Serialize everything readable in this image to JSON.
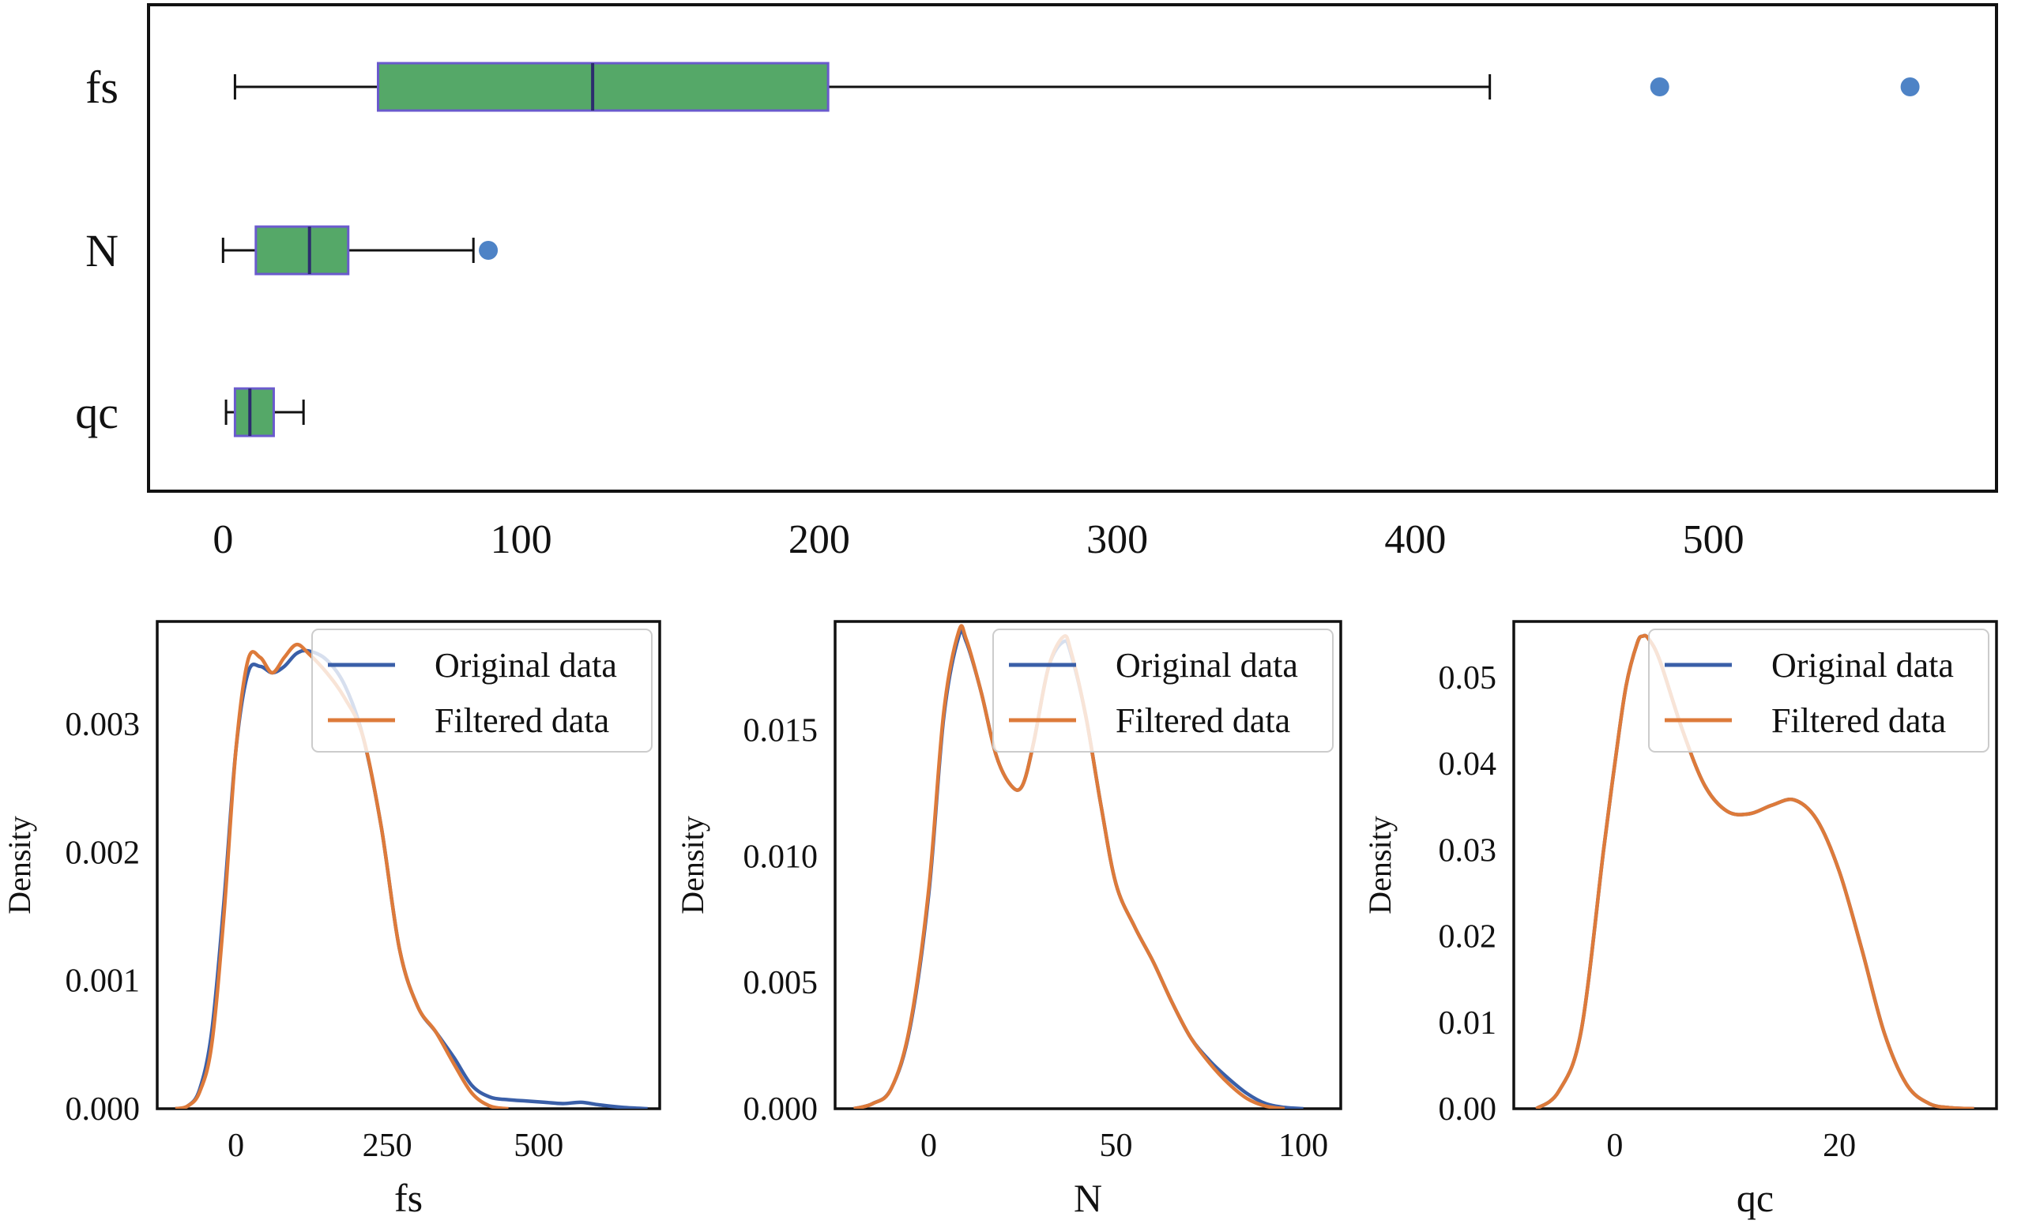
{
  "chart_data": [
    {
      "type": "boxplot",
      "orientation": "horizontal",
      "title": "",
      "categories": [
        "fs",
        "N",
        "qc"
      ],
      "xlim": [
        -25,
        595
      ],
      "xticks": [
        0,
        100,
        200,
        300,
        400,
        500
      ],
      "colors": {
        "box_fill": "#55a868",
        "box_edge": "#6a5acd",
        "median": "#2c2c6e",
        "whisker": "#111111",
        "outlier": "#4e83c6"
      },
      "boxes": [
        {
          "label": "fs",
          "whislo": 4,
          "q1": 52,
          "median": 124,
          "q3": 203,
          "whishi": 425,
          "fliers": [
            482,
            566
          ]
        },
        {
          "label": "N",
          "whislo": 0,
          "q1": 11,
          "median": 29,
          "q3": 42,
          "whishi": 84,
          "fliers": [
            89
          ]
        },
        {
          "label": "qc",
          "whislo": 1,
          "q1": 4,
          "median": 9,
          "q3": 17,
          "whishi": 27,
          "fliers": []
        }
      ]
    },
    {
      "type": "line",
      "title": "",
      "xlabel": "fs",
      "ylabel": "Density",
      "xlim": [
        -130,
        700
      ],
      "ylim": [
        0,
        0.0038
      ],
      "xticks": [
        0,
        250,
        500
      ],
      "yticks": [
        0.0,
        0.001,
        0.002,
        0.003
      ],
      "ytick_labels": [
        "0.000",
        "0.001",
        "0.002",
        "0.003"
      ],
      "legend": {
        "loc": "upper right",
        "entries": [
          "Original data",
          "Filtered data"
        ]
      },
      "series": [
        {
          "name": "Original data",
          "color": "#3a5fa8",
          "x": [
            -100,
            -80,
            -60,
            -40,
            -20,
            0,
            20,
            40,
            60,
            80,
            100,
            120,
            150,
            180,
            210,
            240,
            270,
            300,
            330,
            360,
            390,
            420,
            450,
            480,
            510,
            540,
            570,
            600,
            640,
            680
          ],
          "y": [
            0.0,
            2e-05,
            0.00015,
            0.0006,
            0.0016,
            0.0028,
            0.0034,
            0.00345,
            0.0034,
            0.00345,
            0.00355,
            0.00357,
            0.0035,
            0.0033,
            0.0029,
            0.0022,
            0.00125,
            0.0008,
            0.0006,
            0.0004,
            0.00018,
            9e-05,
            7e-05,
            6e-05,
            5e-05,
            4e-05,
            5e-05,
            3e-05,
            1e-05,
            0.0
          ]
        },
        {
          "name": "Filtered data",
          "color": "#dd7a3a",
          "x": [
            -100,
            -80,
            -60,
            -40,
            -20,
            0,
            20,
            40,
            60,
            80,
            100,
            120,
            150,
            180,
            210,
            240,
            270,
            300,
            330,
            360,
            390,
            420,
            450
          ],
          "y": [
            0.0,
            2e-05,
            0.00013,
            0.0005,
            0.0015,
            0.0028,
            0.0035,
            0.00352,
            0.0034,
            0.00352,
            0.00362,
            0.00355,
            0.0034,
            0.0032,
            0.0029,
            0.0022,
            0.00125,
            0.0008,
            0.0006,
            0.00035,
            0.00012,
            2e-05,
            0.0
          ]
        }
      ]
    },
    {
      "type": "line",
      "title": "",
      "xlabel": "N",
      "ylabel": "Density",
      "xlim": [
        -25,
        110
      ],
      "ylim": [
        0,
        0.0193
      ],
      "xticks": [
        0,
        50,
        100
      ],
      "yticks": [
        0.0,
        0.005,
        0.01,
        0.015
      ],
      "ytick_labels": [
        "0.000",
        "0.005",
        "0.010",
        "0.015"
      ],
      "legend": {
        "loc": "upper right",
        "entries": [
          "Original data",
          "Filtered data"
        ]
      },
      "series": [
        {
          "name": "Original data",
          "color": "#3a5fa8",
          "x": [
            -20,
            -15,
            -10,
            -5,
            0,
            4,
            8,
            10,
            14,
            18,
            22,
            25,
            28,
            32,
            36,
            38,
            42,
            46,
            50,
            55,
            60,
            65,
            70,
            75,
            80,
            85,
            90,
            95,
            100
          ],
          "y": [
            0.0,
            0.0002,
            0.0008,
            0.0032,
            0.0085,
            0.0155,
            0.0187,
            0.0185,
            0.0165,
            0.014,
            0.0128,
            0.0128,
            0.0145,
            0.0175,
            0.0185,
            0.018,
            0.0155,
            0.012,
            0.0089,
            0.0072,
            0.0058,
            0.0042,
            0.0028,
            0.0019,
            0.0012,
            0.0006,
            0.0002,
            5e-05,
            0.0
          ]
        },
        {
          "name": "Filtered data",
          "color": "#dd7a3a",
          "x": [
            -20,
            -15,
            -10,
            -5,
            0,
            4,
            8,
            10,
            14,
            18,
            22,
            25,
            28,
            32,
            36,
            38,
            42,
            46,
            50,
            55,
            60,
            65,
            70,
            75,
            80,
            85,
            90,
            95
          ],
          "y": [
            0.0,
            0.0002,
            0.0008,
            0.0033,
            0.0087,
            0.0157,
            0.0189,
            0.0186,
            0.0165,
            0.014,
            0.0128,
            0.0128,
            0.0145,
            0.0175,
            0.0187,
            0.0181,
            0.0155,
            0.012,
            0.0089,
            0.0072,
            0.0058,
            0.0042,
            0.0028,
            0.0018,
            0.001,
            0.0004,
            0.0001,
            0.0
          ]
        }
      ]
    },
    {
      "type": "line",
      "title": "",
      "xlabel": "qc",
      "ylabel": "Density",
      "xlim": [
        -9,
        34
      ],
      "ylim": [
        0,
        0.0565
      ],
      "xticks": [
        0,
        20
      ],
      "yticks": [
        0.0,
        0.01,
        0.02,
        0.03,
        0.04,
        0.05
      ],
      "ytick_labels": [
        "0.00",
        "0.01",
        "0.02",
        "0.03",
        "0.04",
        "0.05"
      ],
      "legend": {
        "loc": "upper right",
        "entries": [
          "Original data",
          "Filtered data"
        ]
      },
      "series": [
        {
          "name": "Original data",
          "color": "#3a5fa8",
          "x": [
            -7,
            -5,
            -3,
            -1,
            0,
            1,
            2,
            2.5,
            3,
            4,
            6,
            8,
            10,
            12,
            14,
            16,
            18,
            20,
            22,
            24,
            26,
            28,
            30,
            32
          ],
          "y": [
            0.0,
            0.002,
            0.009,
            0.03,
            0.04,
            0.049,
            0.054,
            0.0548,
            0.0545,
            0.052,
            0.044,
            0.0375,
            0.0345,
            0.0342,
            0.0352,
            0.0358,
            0.0335,
            0.0275,
            0.0185,
            0.0088,
            0.0028,
            0.0006,
            0.0001,
            0.0
          ]
        },
        {
          "name": "Filtered data",
          "color": "#dd7a3a",
          "x": [
            -7,
            -5,
            -3,
            -1,
            0,
            1,
            2,
            2.5,
            3,
            4,
            6,
            8,
            10,
            12,
            14,
            16,
            18,
            20,
            22,
            24,
            26,
            28,
            30,
            32
          ],
          "y": [
            0.0,
            0.002,
            0.009,
            0.03,
            0.04,
            0.049,
            0.054,
            0.0548,
            0.0545,
            0.052,
            0.044,
            0.0375,
            0.0345,
            0.0342,
            0.0352,
            0.0358,
            0.0335,
            0.0275,
            0.0185,
            0.0088,
            0.0028,
            0.0006,
            0.0001,
            0.0
          ]
        }
      ]
    }
  ]
}
